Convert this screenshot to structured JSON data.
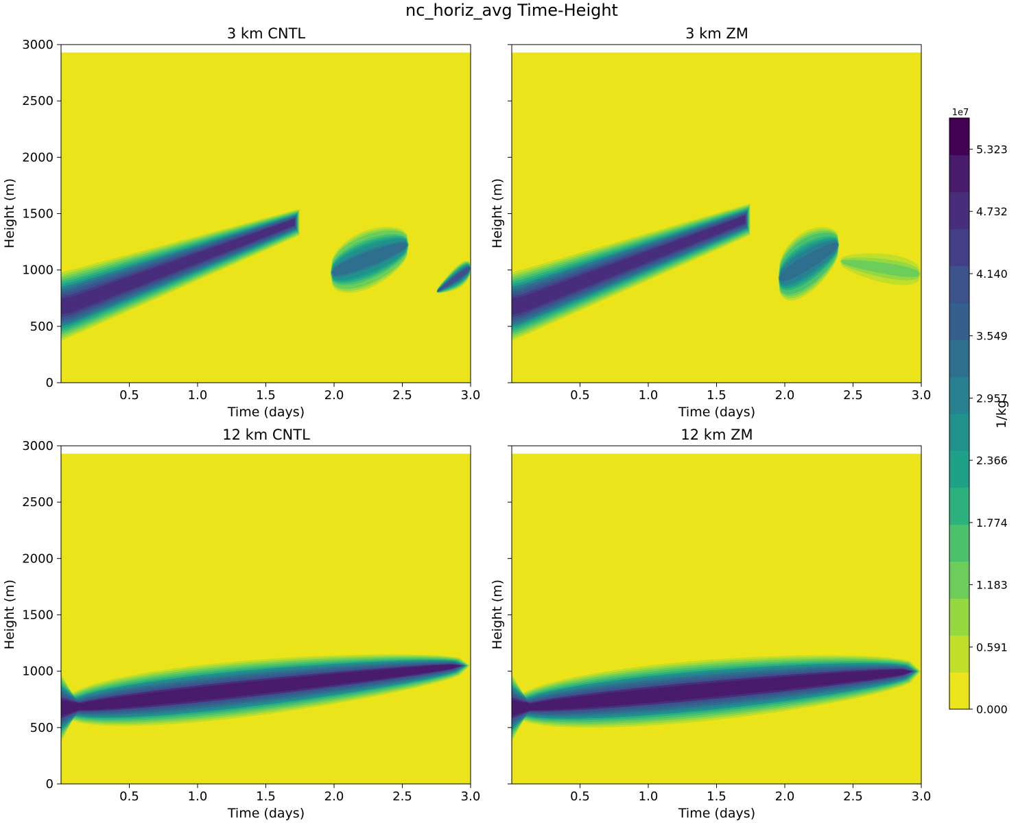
{
  "figure_title": "nc_horiz_avg Time-Height",
  "chart_data": {
    "type": "contourf",
    "title": "nc_horiz_avg Time-Height",
    "panels": [
      {
        "title": "3 km CNTL",
        "xlabel": "Time (days)",
        "ylabel": "Height (m)",
        "xlim": [
          0,
          3
        ],
        "ylim": [
          0,
          3000
        ],
        "xticks": [
          0.5,
          1.0,
          1.5,
          2.0,
          2.5,
          3.0
        ],
        "yticks": [
          0,
          500,
          1000,
          1500,
          2000,
          2500,
          3000
        ],
        "model_top_m": 2930,
        "features": [
          {
            "t0": 0.0,
            "t1": 1.75,
            "bottom_start": 350,
            "bottom_end": 1300,
            "top_start": 1000,
            "top_end": 1550,
            "peak": 49000000.0
          },
          {
            "t0": 1.97,
            "t1": 2.55,
            "bottom_start": 650,
            "bottom_end": 950,
            "top_start": 1300,
            "top_end": 1500,
            "peak": 33000000.0
          },
          {
            "t0": 2.75,
            "t1": 3.0,
            "bottom_start": 760,
            "bottom_end": 850,
            "top_start": 860,
            "top_end": 1180,
            "peak": 39000000.0
          }
        ]
      },
      {
        "title": "3 km ZM",
        "xlabel": "Time (days)",
        "ylabel": "Height (m)",
        "xlim": [
          0,
          3
        ],
        "ylim": [
          0,
          3000
        ],
        "xticks": [
          0.5,
          1.0,
          1.5,
          2.0,
          2.5,
          3.0
        ],
        "yticks": [
          0,
          500,
          1000,
          1500,
          2000,
          2500,
          3000
        ],
        "model_top_m": 2930,
        "features": [
          {
            "t0": 0.0,
            "t1": 1.75,
            "bottom_start": 350,
            "bottom_end": 1300,
            "top_start": 1000,
            "top_end": 1600,
            "peak": 49000000.0
          },
          {
            "t0": 1.95,
            "t1": 2.4,
            "bottom_start": 550,
            "bottom_end": 950,
            "top_start": 1300,
            "top_end": 1500,
            "peak": 34000000.0
          },
          {
            "t0": 2.4,
            "t1": 3.0,
            "bottom_start": 950,
            "bottom_end": 750,
            "top_start": 1200,
            "top_end": 1180,
            "peak": 12000000.0
          }
        ]
      },
      {
        "title": "12 km CNTL",
        "xlabel": "Time (days)",
        "ylabel": "Height (m)",
        "xlim": [
          0,
          3
        ],
        "ylim": [
          0,
          3000
        ],
        "xticks": [
          0.5,
          1.0,
          1.5,
          2.0,
          2.5,
          3.0
        ],
        "yticks": [
          0,
          500,
          1000,
          1500,
          2000,
          2500,
          3000
        ],
        "model_top_m": 2930,
        "features": [
          {
            "t0": 0.0,
            "t1": 3.0,
            "bottom_start": 350,
            "bottom_end": 850,
            "top_start": 1000,
            "top_end": 1250,
            "peak": 50000000.0
          }
        ]
      },
      {
        "title": "12 km ZM",
        "xlabel": "Time (days)",
        "ylabel": "Height (m)",
        "xlim": [
          0,
          3
        ],
        "ylim": [
          0,
          3000
        ],
        "xticks": [
          0.5,
          1.0,
          1.5,
          2.0,
          2.5,
          3.0
        ],
        "yticks": [
          0,
          500,
          1000,
          1500,
          2000,
          2500,
          3000
        ],
        "model_top_m": 2930,
        "features": [
          {
            "t0": 0.0,
            "t1": 3.0,
            "bottom_start": 350,
            "bottom_end": 750,
            "top_start": 1000,
            "top_end": 1250,
            "peak": 50000000.0
          }
        ]
      }
    ],
    "colorbar": {
      "label": "1/kg",
      "multiplier": "1e7",
      "ticks": [
        "0.000",
        "0.591",
        "1.183",
        "1.774",
        "2.366",
        "2.957",
        "3.549",
        "4.140",
        "4.732",
        "5.323"
      ],
      "levels": 19,
      "vmin": 0,
      "vmax": 5.62,
      "colormap": "viridis_r",
      "colors": [
        "#ece41b",
        "#c1de2a",
        "#95d840",
        "#6ccd5a",
        "#4ac16d",
        "#2db27d",
        "#1fa187",
        "#21918c",
        "#28818e",
        "#2e6e8e",
        "#355f8d",
        "#3b528b",
        "#433e85",
        "#472d7b",
        "#481b6d",
        "#440154"
      ]
    }
  }
}
